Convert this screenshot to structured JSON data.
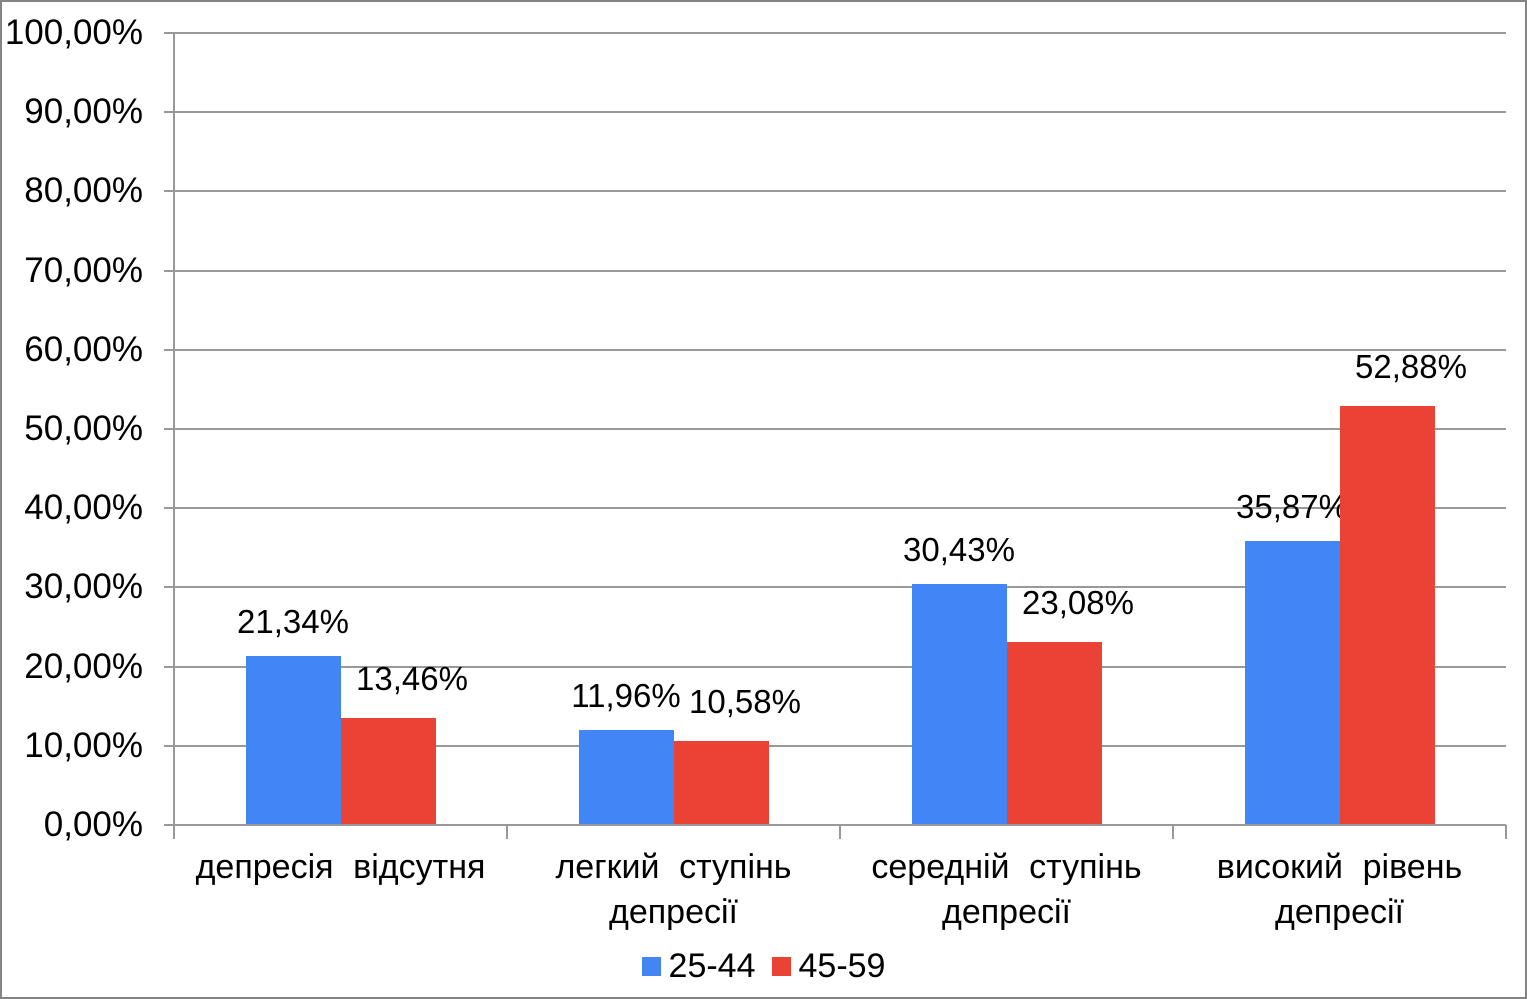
{
  "chart_data": {
    "type": "bar",
    "title": "",
    "xlabel": "",
    "ylabel": "",
    "categories": [
      "депресія відсутня",
      "легкий ступінь депресії",
      "середній ступінь депресії",
      "високий рівень депресії"
    ],
    "series": [
      {
        "name": "25-44",
        "color": "#4285F4",
        "values": [
          21.34,
          11.96,
          30.43,
          35.87
        ],
        "labels": [
          "21,34%",
          "11,96%",
          "30,43%",
          "35,87%"
        ]
      },
      {
        "name": "45-59",
        "color": "#EA4335",
        "values": [
          13.46,
          10.58,
          23.08,
          52.88
        ],
        "labels": [
          "13,46%",
          "10,58%",
          "23,08%",
          "52,88%"
        ]
      }
    ],
    "y_axis": {
      "min": 0,
      "max": 100,
      "step": 10,
      "tick_labels": [
        "0,00%",
        "10,00%",
        "20,00%",
        "30,00%",
        "40,00%",
        "50,00%",
        "60,00%",
        "70,00%",
        "80,00%",
        "90,00%",
        "100,00%"
      ]
    },
    "legend": {
      "position": "bottom",
      "entries": [
        "25-44",
        "45-59"
      ]
    },
    "grid": true,
    "colors": {
      "gridline": "#999999",
      "text": "#000000",
      "border": "#848484",
      "background": "#FFFFFF"
    }
  }
}
